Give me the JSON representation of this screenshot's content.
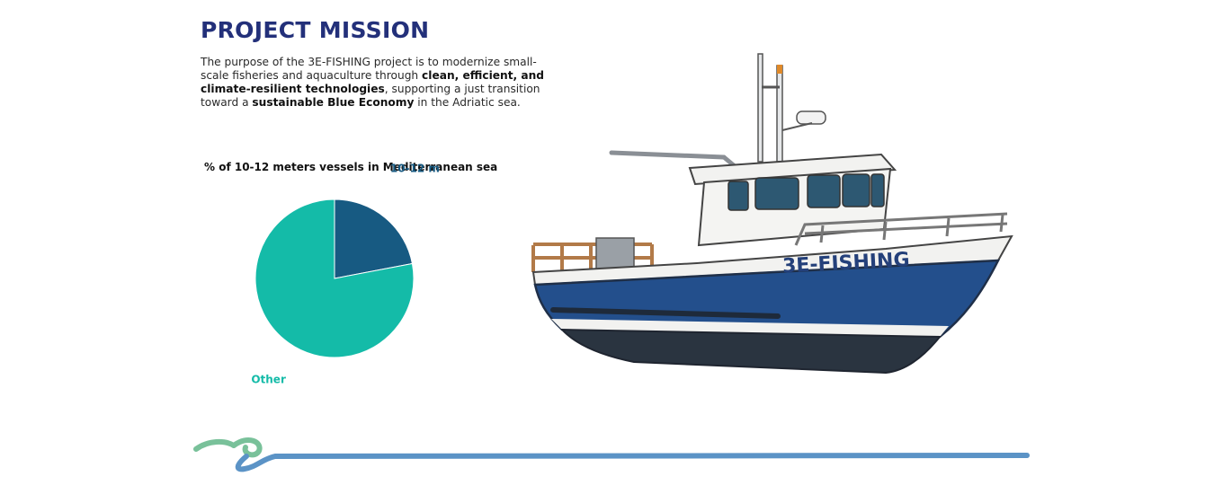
{
  "mission": {
    "title": "PROJECT MISSION",
    "p1": "The purpose of the 3E-FISHING project is to modernize small-scale fisheries and aquaculture through ",
    "b1": "clean, efficient, and climate-resilient technologies",
    "p2": ", supporting a just transition toward a ",
    "b2": "sustainable Blue Economy",
    "p3": " in the Adriatic sea."
  },
  "chart_data": {
    "type": "pie",
    "title": "% of 10-12 meters vessels in Mediterranean sea",
    "slices": [
      {
        "label": "10-12 m",
        "value": 22,
        "color": "#175a82"
      },
      {
        "label": "Other",
        "value": 78,
        "color": "#14bba8"
      }
    ],
    "legend": "labels beside slices"
  },
  "boat": {
    "name": "3E-FISHING"
  },
  "colors": {
    "title": "#23307a",
    "hull": "#234f8c",
    "wave_blue": "#5b93c6",
    "wave_green": "#79c19a"
  }
}
